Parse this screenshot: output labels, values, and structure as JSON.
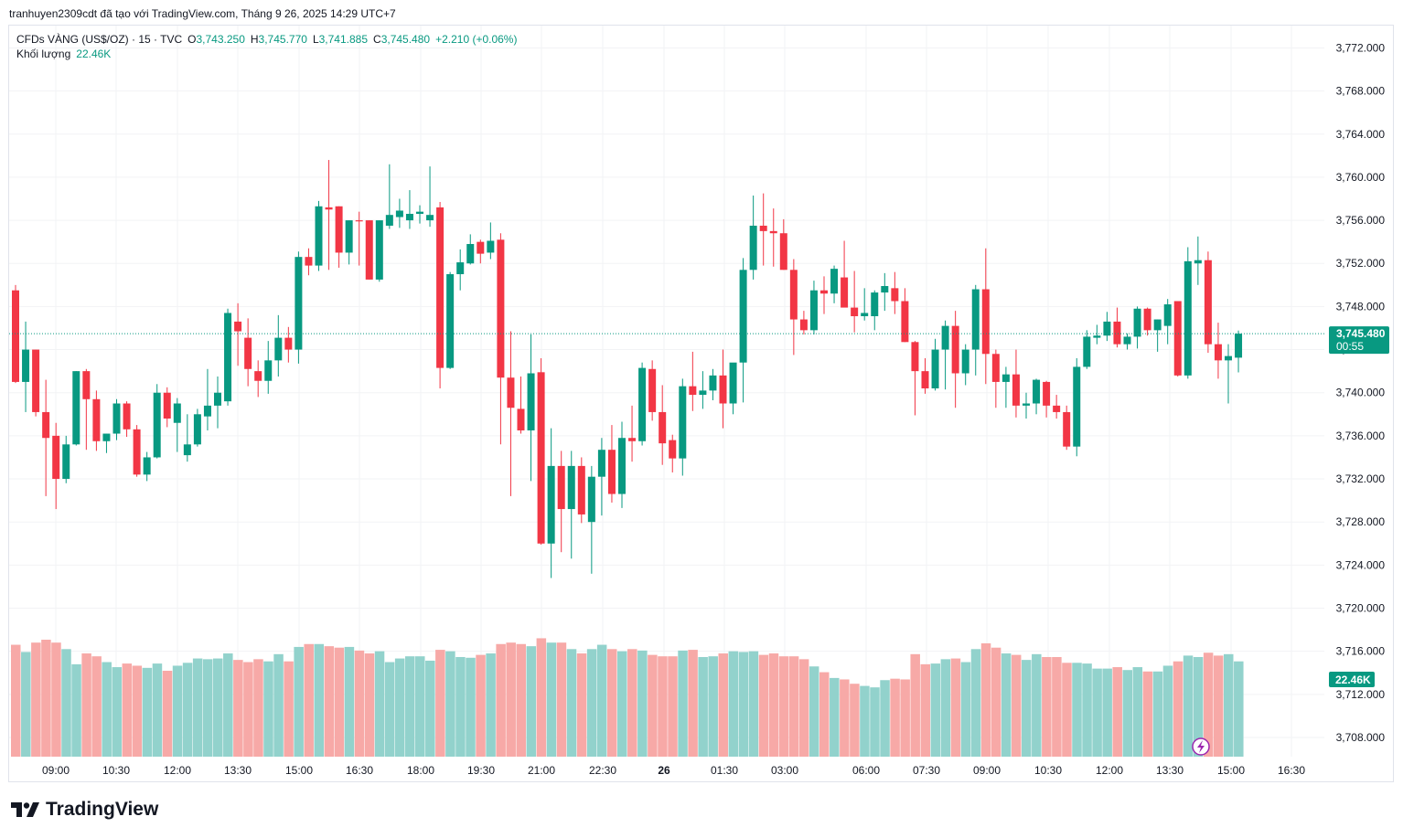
{
  "header": {
    "credit": "tranhuyen2309cdt đã tạo với TradingView.com, Tháng 9 26, 2025 14:29 UTC+7"
  },
  "legend": {
    "symbol": "CFDs VÀNG (US$/OZ) · 15 · TVC",
    "o_label": "O",
    "o_value": "3,743.250",
    "h_label": "H",
    "h_value": "3,745.770",
    "l_label": "L",
    "l_value": "3,741.885",
    "c_label": "C",
    "c_value": "3,745.480",
    "change": "+2.210 (+0.06%)",
    "volume_label": "Khối lượng",
    "volume_value": "22.46K"
  },
  "price_badge": {
    "price": "3,745.480",
    "countdown": "00:55"
  },
  "volume_badge": {
    "value": "22.46K"
  },
  "brand": {
    "name": "TradingView"
  },
  "colors": {
    "up": "#089981",
    "down": "#f23645",
    "up_volume": "#92d2cc",
    "down_volume": "#f7a9a7",
    "grid": "#f2f3f5",
    "text": "#131722"
  },
  "chart_data": {
    "type": "candlestick",
    "interval": "15",
    "y_ticks": [
      "3,708.000",
      "3,712.000",
      "3,716.000",
      "3,720.000",
      "3,724.000",
      "3,728.000",
      "3,732.000",
      "3,736.000",
      "3,740.000",
      "3,744.000",
      "3,748.000",
      "3,752.000",
      "3,756.000",
      "3,760.000",
      "3,764.000",
      "3,768.000",
      "3,772.000"
    ],
    "ylim": [
      3704,
      3774
    ],
    "x_ticks": [
      "09:00",
      "10:30",
      "12:00",
      "13:30",
      "15:00",
      "16:30",
      "18:00",
      "19:30",
      "21:00",
      "22:30",
      "26",
      "01:30",
      "03:00",
      "06:00",
      "07:30",
      "09:00",
      "10:30",
      "12:00",
      "13:30",
      "15:00",
      "16:30"
    ],
    "last_price": 3745.48,
    "candles": [
      {
        "o": 3749.5,
        "h": 3750.0,
        "l": 3740.9,
        "c": 3741.0,
        "v": 15.5
      },
      {
        "o": 3741.0,
        "h": 3746.6,
        "l": 3738.2,
        "c": 3744.0,
        "v": 14.5
      },
      {
        "o": 3744.0,
        "h": 3744.0,
        "l": 3737.8,
        "c": 3738.2,
        "v": 15.8
      },
      {
        "o": 3738.2,
        "h": 3741.2,
        "l": 3730.4,
        "c": 3735.8,
        "v": 16.2
      },
      {
        "o": 3736.0,
        "h": 3737.2,
        "l": 3729.2,
        "c": 3732.0,
        "v": 15.8
      },
      {
        "o": 3732.0,
        "h": 3736.0,
        "l": 3731.6,
        "c": 3735.2,
        "v": 14.9
      },
      {
        "o": 3735.2,
        "h": 3742.0,
        "l": 3735.1,
        "c": 3742.0,
        "v": 12.8
      },
      {
        "o": 3742.0,
        "h": 3742.2,
        "l": 3734.7,
        "c": 3739.4,
        "v": 14.3
      },
      {
        "o": 3739.4,
        "h": 3740.2,
        "l": 3734.6,
        "c": 3735.5,
        "v": 13.9
      },
      {
        "o": 3735.5,
        "h": 3736.2,
        "l": 3734.4,
        "c": 3736.2,
        "v": 13.1
      },
      {
        "o": 3736.2,
        "h": 3739.4,
        "l": 3735.6,
        "c": 3739.0,
        "v": 12.4
      },
      {
        "o": 3739.0,
        "h": 3739.2,
        "l": 3735.9,
        "c": 3736.6,
        "v": 12.9
      },
      {
        "o": 3736.6,
        "h": 3737.0,
        "l": 3732.2,
        "c": 3732.4,
        "v": 12.6
      },
      {
        "o": 3732.4,
        "h": 3734.5,
        "l": 3731.8,
        "c": 3734.0,
        "v": 12.3
      },
      {
        "o": 3734.0,
        "h": 3740.8,
        "l": 3733.9,
        "c": 3740.0,
        "v": 12.9
      },
      {
        "o": 3740.0,
        "h": 3740.5,
        "l": 3736.8,
        "c": 3737.6,
        "v": 11.9
      },
      {
        "o": 3737.2,
        "h": 3739.5,
        "l": 3734.5,
        "c": 3739.0,
        "v": 12.6
      },
      {
        "o": 3734.2,
        "h": 3738.0,
        "l": 3733.6,
        "c": 3735.2,
        "v": 13.0
      },
      {
        "o": 3735.2,
        "h": 3738.5,
        "l": 3735.0,
        "c": 3738.0,
        "v": 13.6
      },
      {
        "o": 3737.8,
        "h": 3742.2,
        "l": 3736.5,
        "c": 3738.8,
        "v": 13.5
      },
      {
        "o": 3738.8,
        "h": 3741.5,
        "l": 3736.7,
        "c": 3740.0,
        "v": 13.6
      },
      {
        "o": 3739.2,
        "h": 3747.8,
        "l": 3738.8,
        "c": 3747.4,
        "v": 14.3
      },
      {
        "o": 3746.6,
        "h": 3748.3,
        "l": 3742.5,
        "c": 3745.7,
        "v": 13.4
      },
      {
        "o": 3745.1,
        "h": 3746.9,
        "l": 3740.6,
        "c": 3742.2,
        "v": 13.1
      },
      {
        "o": 3742.0,
        "h": 3743.0,
        "l": 3739.6,
        "c": 3741.1,
        "v": 13.5
      },
      {
        "o": 3741.1,
        "h": 3744.8,
        "l": 3739.9,
        "c": 3743.0,
        "v": 13.2
      },
      {
        "o": 3743.0,
        "h": 3747.2,
        "l": 3741.5,
        "c": 3745.1,
        "v": 14.2
      },
      {
        "o": 3745.1,
        "h": 3746.1,
        "l": 3742.8,
        "c": 3744.0,
        "v": 13.2
      },
      {
        "o": 3744.0,
        "h": 3753.1,
        "l": 3742.7,
        "c": 3752.6,
        "v": 15.2
      },
      {
        "o": 3752.6,
        "h": 3753.4,
        "l": 3750.9,
        "c": 3751.8,
        "v": 15.6
      },
      {
        "o": 3751.8,
        "h": 3757.8,
        "l": 3751.3,
        "c": 3757.3,
        "v": 15.6
      },
      {
        "o": 3757.2,
        "h": 3761.6,
        "l": 3751.4,
        "c": 3757.0,
        "v": 15.3
      },
      {
        "o": 3757.3,
        "h": 3757.3,
        "l": 3751.6,
        "c": 3753.0,
        "v": 15.1
      },
      {
        "o": 3753.0,
        "h": 3756.0,
        "l": 3751.9,
        "c": 3756.0,
        "v": 15.2
      },
      {
        "o": 3756.0,
        "h": 3756.8,
        "l": 3751.8,
        "c": 3755.9,
        "v": 14.7
      },
      {
        "o": 3756.0,
        "h": 3756.0,
        "l": 3750.5,
        "c": 3750.5,
        "v": 14.3
      },
      {
        "o": 3750.5,
        "h": 3756.0,
        "l": 3750.3,
        "c": 3756.0,
        "v": 14.6
      },
      {
        "o": 3755.5,
        "h": 3761.2,
        "l": 3755.2,
        "c": 3756.5,
        "v": 13.1
      },
      {
        "o": 3756.3,
        "h": 3758.0,
        "l": 3755.3,
        "c": 3756.9,
        "v": 13.6
      },
      {
        "o": 3756.0,
        "h": 3758.8,
        "l": 3755.2,
        "c": 3756.6,
        "v": 13.9
      },
      {
        "o": 3756.6,
        "h": 3757.4,
        "l": 3755.7,
        "c": 3756.8,
        "v": 13.9
      },
      {
        "o": 3756.0,
        "h": 3761.0,
        "l": 3755.4,
        "c": 3756.5,
        "v": 13.3
      },
      {
        "o": 3757.2,
        "h": 3757.7,
        "l": 3740.4,
        "c": 3742.3,
        "v": 14.8
      },
      {
        "o": 3742.3,
        "h": 3751.2,
        "l": 3742.2,
        "c": 3751.0,
        "v": 14.6
      },
      {
        "o": 3751.0,
        "h": 3753.3,
        "l": 3749.5,
        "c": 3752.1,
        "v": 13.8
      },
      {
        "o": 3752.0,
        "h": 3754.7,
        "l": 3751.9,
        "c": 3753.8,
        "v": 13.7
      },
      {
        "o": 3754.0,
        "h": 3754.2,
        "l": 3752.0,
        "c": 3752.9,
        "v": 14.1
      },
      {
        "o": 3753.0,
        "h": 3755.8,
        "l": 3752.4,
        "c": 3754.1,
        "v": 14.3
      },
      {
        "o": 3754.2,
        "h": 3754.8,
        "l": 3735.2,
        "c": 3741.4,
        "v": 15.6
      },
      {
        "o": 3741.4,
        "h": 3745.7,
        "l": 3730.4,
        "c": 3738.6,
        "v": 15.8
      },
      {
        "o": 3738.5,
        "h": 3741.5,
        "l": 3736.2,
        "c": 3736.5,
        "v": 15.6
      },
      {
        "o": 3736.5,
        "h": 3745.4,
        "l": 3731.8,
        "c": 3741.8,
        "v": 15.3
      },
      {
        "o": 3741.9,
        "h": 3743.2,
        "l": 3725.9,
        "c": 3726.0,
        "v": 16.4
      },
      {
        "o": 3726.0,
        "h": 3736.7,
        "l": 3722.8,
        "c": 3733.2,
        "v": 15.8
      },
      {
        "o": 3733.2,
        "h": 3734.6,
        "l": 3725.2,
        "c": 3729.2,
        "v": 15.8
      },
      {
        "o": 3729.2,
        "h": 3734.6,
        "l": 3724.6,
        "c": 3733.2,
        "v": 14.9
      },
      {
        "o": 3733.2,
        "h": 3734.0,
        "l": 3727.9,
        "c": 3728.7,
        "v": 14.3
      },
      {
        "o": 3728.0,
        "h": 3733.2,
        "l": 3723.2,
        "c": 3732.2,
        "v": 14.9
      },
      {
        "o": 3732.2,
        "h": 3735.8,
        "l": 3728.6,
        "c": 3734.7,
        "v": 15.5
      },
      {
        "o": 3734.7,
        "h": 3737.0,
        "l": 3729.8,
        "c": 3730.6,
        "v": 14.9
      },
      {
        "o": 3730.6,
        "h": 3737.3,
        "l": 3729.3,
        "c": 3735.8,
        "v": 14.6
      },
      {
        "o": 3735.8,
        "h": 3738.8,
        "l": 3733.6,
        "c": 3735.5,
        "v": 14.9
      },
      {
        "o": 3735.5,
        "h": 3742.8,
        "l": 3735.1,
        "c": 3742.3,
        "v": 14.7
      },
      {
        "o": 3742.2,
        "h": 3743.0,
        "l": 3737.4,
        "c": 3738.2,
        "v": 14.1
      },
      {
        "o": 3738.2,
        "h": 3740.7,
        "l": 3733.3,
        "c": 3735.3,
        "v": 13.9
      },
      {
        "o": 3735.6,
        "h": 3736.1,
        "l": 3732.6,
        "c": 3733.9,
        "v": 13.9
      },
      {
        "o": 3733.9,
        "h": 3741.3,
        "l": 3732.3,
        "c": 3740.6,
        "v": 14.7
      },
      {
        "o": 3740.6,
        "h": 3743.8,
        "l": 3738.3,
        "c": 3739.8,
        "v": 14.8
      },
      {
        "o": 3739.8,
        "h": 3742.0,
        "l": 3738.5,
        "c": 3740.2,
        "v": 13.8
      },
      {
        "o": 3740.2,
        "h": 3742.2,
        "l": 3739.3,
        "c": 3741.6,
        "v": 13.9
      },
      {
        "o": 3741.6,
        "h": 3744.0,
        "l": 3736.7,
        "c": 3739.0,
        "v": 14.3
      },
      {
        "o": 3739.0,
        "h": 3742.3,
        "l": 3738.0,
        "c": 3742.8,
        "v": 14.6
      },
      {
        "o": 3742.8,
        "h": 3752.5,
        "l": 3739.1,
        "c": 3751.4,
        "v": 14.5
      },
      {
        "o": 3751.4,
        "h": 3758.3,
        "l": 3750.5,
        "c": 3755.5,
        "v": 14.6
      },
      {
        "o": 3755.5,
        "h": 3758.5,
        "l": 3751.8,
        "c": 3755.0,
        "v": 14.1
      },
      {
        "o": 3755.0,
        "h": 3757.1,
        "l": 3751.7,
        "c": 3754.8,
        "v": 14.3
      },
      {
        "o": 3754.8,
        "h": 3756.1,
        "l": 3751.4,
        "c": 3751.4,
        "v": 13.9
      },
      {
        "o": 3751.4,
        "h": 3752.4,
        "l": 3743.5,
        "c": 3746.8,
        "v": 13.9
      },
      {
        "o": 3746.8,
        "h": 3747.6,
        "l": 3745.4,
        "c": 3745.8,
        "v": 13.5
      },
      {
        "o": 3745.8,
        "h": 3750.4,
        "l": 3745.4,
        "c": 3749.5,
        "v": 12.5
      },
      {
        "o": 3749.5,
        "h": 3750.8,
        "l": 3747.3,
        "c": 3749.2,
        "v": 11.7
      },
      {
        "o": 3749.2,
        "h": 3751.8,
        "l": 3748.3,
        "c": 3751.5,
        "v": 10.9
      },
      {
        "o": 3750.7,
        "h": 3754.1,
        "l": 3748.0,
        "c": 3747.9,
        "v": 10.7
      },
      {
        "o": 3747.9,
        "h": 3751.3,
        "l": 3745.6,
        "c": 3747.1,
        "v": 10.1
      },
      {
        "o": 3747.1,
        "h": 3749.7,
        "l": 3746.7,
        "c": 3747.4,
        "v": 9.8
      },
      {
        "o": 3747.1,
        "h": 3749.5,
        "l": 3745.8,
        "c": 3749.3,
        "v": 9.6
      },
      {
        "o": 3749.3,
        "h": 3751.1,
        "l": 3747.6,
        "c": 3749.9,
        "v": 10.6
      },
      {
        "o": 3749.7,
        "h": 3751.2,
        "l": 3747.3,
        "c": 3748.5,
        "v": 10.8
      },
      {
        "o": 3748.5,
        "h": 3749.7,
        "l": 3744.7,
        "c": 3744.7,
        "v": 10.7
      },
      {
        "o": 3744.7,
        "h": 3744.8,
        "l": 3737.9,
        "c": 3742.0,
        "v": 14.2
      },
      {
        "o": 3742.0,
        "h": 3743.2,
        "l": 3739.9,
        "c": 3740.4,
        "v": 12.8
      },
      {
        "o": 3740.4,
        "h": 3745.0,
        "l": 3740.2,
        "c": 3744.0,
        "v": 12.9
      },
      {
        "o": 3744.0,
        "h": 3746.7,
        "l": 3740.3,
        "c": 3746.2,
        "v": 13.5
      },
      {
        "o": 3746.2,
        "h": 3747.6,
        "l": 3738.6,
        "c": 3741.8,
        "v": 13.6
      },
      {
        "o": 3741.8,
        "h": 3744.5,
        "l": 3740.7,
        "c": 3744.0,
        "v": 13.1
      },
      {
        "o": 3744.0,
        "h": 3750.0,
        "l": 3741.6,
        "c": 3749.6,
        "v": 14.9
      },
      {
        "o": 3749.6,
        "h": 3753.4,
        "l": 3740.8,
        "c": 3743.6,
        "v": 15.7
      },
      {
        "o": 3743.6,
        "h": 3744.0,
        "l": 3738.6,
        "c": 3741.0,
        "v": 15.1
      },
      {
        "o": 3741.0,
        "h": 3742.4,
        "l": 3738.6,
        "c": 3741.7,
        "v": 14.3
      },
      {
        "o": 3741.7,
        "h": 3744.0,
        "l": 3737.7,
        "c": 3738.8,
        "v": 14.1
      },
      {
        "o": 3738.8,
        "h": 3740.0,
        "l": 3737.6,
        "c": 3739.0,
        "v": 13.4
      },
      {
        "o": 3739.0,
        "h": 3741.3,
        "l": 3738.0,
        "c": 3741.2,
        "v": 14.2
      },
      {
        "o": 3741.0,
        "h": 3741.1,
        "l": 3737.7,
        "c": 3738.8,
        "v": 13.8
      },
      {
        "o": 3738.8,
        "h": 3739.8,
        "l": 3737.6,
        "c": 3738.2,
        "v": 13.8
      },
      {
        "o": 3738.2,
        "h": 3738.8,
        "l": 3734.7,
        "c": 3735.0,
        "v": 13.0
      },
      {
        "o": 3735.0,
        "h": 3743.2,
        "l": 3734.1,
        "c": 3742.4,
        "v": 13.0
      },
      {
        "o": 3742.4,
        "h": 3745.8,
        "l": 3742.2,
        "c": 3745.2,
        "v": 12.9
      },
      {
        "o": 3745.1,
        "h": 3746.3,
        "l": 3744.5,
        "c": 3745.3,
        "v": 12.2
      },
      {
        "o": 3745.3,
        "h": 3747.5,
        "l": 3744.8,
        "c": 3746.6,
        "v": 12.2
      },
      {
        "o": 3746.6,
        "h": 3747.9,
        "l": 3744.2,
        "c": 3744.5,
        "v": 12.4
      },
      {
        "o": 3744.5,
        "h": 3745.5,
        "l": 3744.0,
        "c": 3745.2,
        "v": 12.0
      },
      {
        "o": 3745.2,
        "h": 3748.0,
        "l": 3744.1,
        "c": 3747.8,
        "v": 12.4
      },
      {
        "o": 3747.8,
        "h": 3747.9,
        "l": 3745.3,
        "c": 3745.8,
        "v": 11.8
      },
      {
        "o": 3745.8,
        "h": 3746.8,
        "l": 3743.8,
        "c": 3746.8,
        "v": 11.8
      },
      {
        "o": 3746.2,
        "h": 3748.7,
        "l": 3744.5,
        "c": 3748.2,
        "v": 12.6
      },
      {
        "o": 3748.5,
        "h": 3748.5,
        "l": 3741.5,
        "c": 3741.6,
        "v": 13.2
      },
      {
        "o": 3741.6,
        "h": 3753.5,
        "l": 3741.3,
        "c": 3752.2,
        "v": 14.0
      },
      {
        "o": 3752.0,
        "h": 3754.5,
        "l": 3750.0,
        "c": 3752.3,
        "v": 13.8
      },
      {
        "o": 3752.3,
        "h": 3753.1,
        "l": 3743.7,
        "c": 3744.5,
        "v": 14.4
      },
      {
        "o": 3744.5,
        "h": 3746.5,
        "l": 3741.3,
        "c": 3743.0,
        "v": 14.0
      },
      {
        "o": 3743.0,
        "h": 3744.5,
        "l": 3739.0,
        "c": 3743.4,
        "v": 14.2
      },
      {
        "o": 3743.25,
        "h": 3745.77,
        "l": 3741.885,
        "c": 3745.48,
        "v": 13.2
      }
    ]
  }
}
